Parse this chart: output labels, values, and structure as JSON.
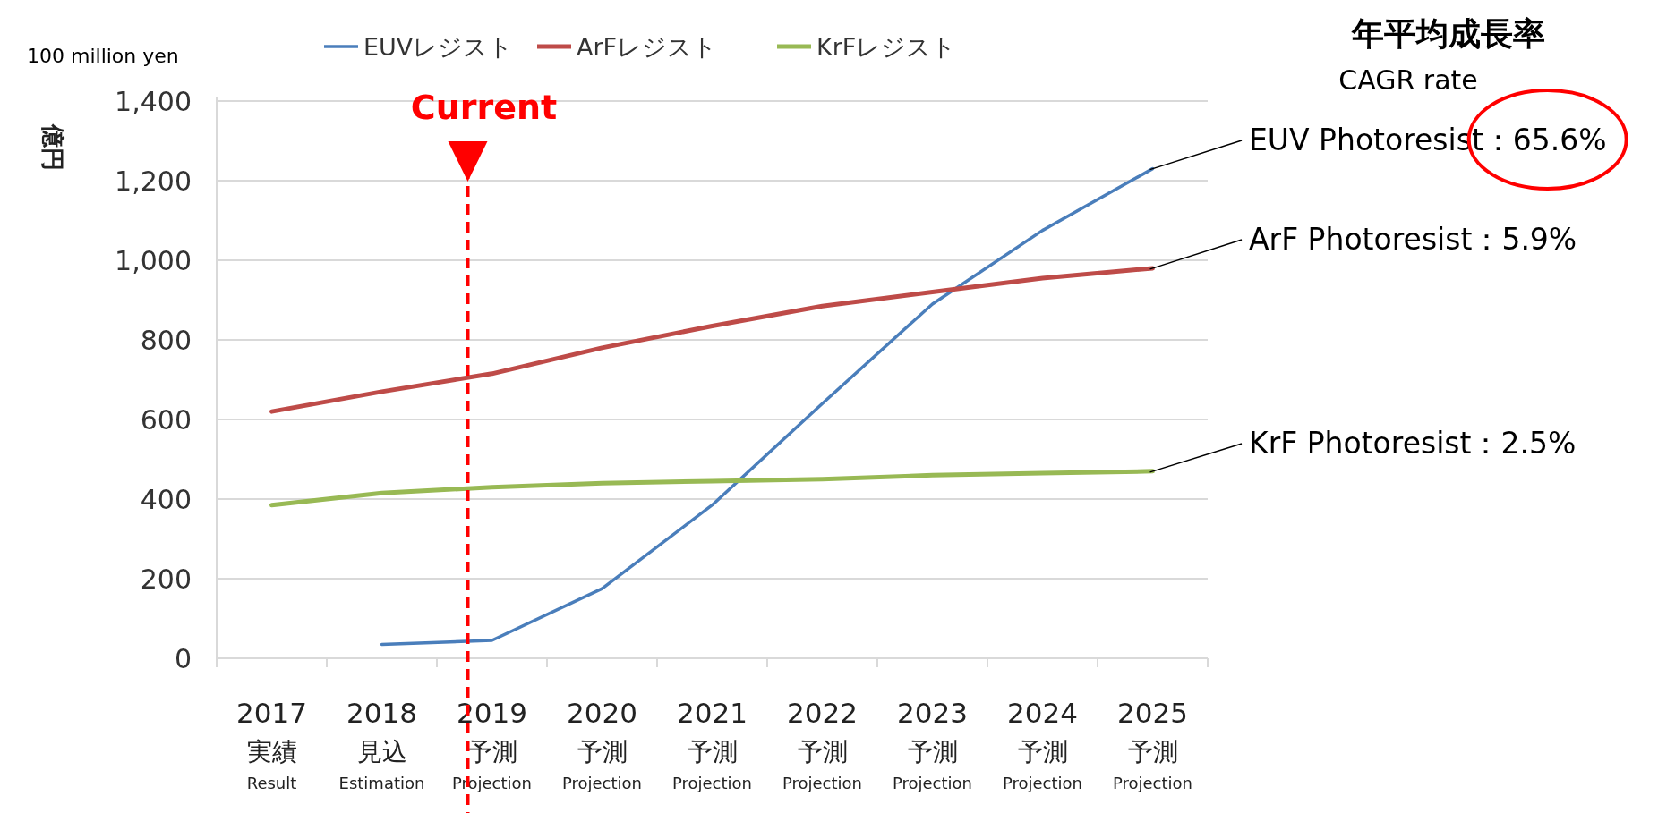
{
  "chart_data": {
    "type": "line",
    "ylabel": "億円",
    "legend": "top",
    "grid": "y",
    "categories": [
      "2017\n実績\nResult",
      "2018\n見込\nEstimation",
      "2019\n予測\nProjection",
      "2020\n予測\nProjection",
      "2021\n予測\nProjection",
      "2022\n予測\nProjection",
      "2023\n予測\nProjection",
      "2024\n予測\nProjection",
      "2025\n予測\nProjection"
    ],
    "ylim": [
      0,
      1400
    ],
    "yticks": [
      0,
      200,
      400,
      600,
      800,
      {
        "value": 1000,
        "label": "1,000"
      },
      {
        "value": 1200,
        "label": "1,200"
      },
      {
        "value": 1400,
        "label": "1,400"
      }
    ],
    "series": [
      {
        "name": "EUVレジスト",
        "color": "#4a7ebb",
        "values": [
          null,
          35,
          45,
          175,
          385,
          640,
          890,
          1075,
          1230
        ]
      },
      {
        "name": "ArFレジスト",
        "color": "#be4b48",
        "values": [
          620,
          670,
          715,
          780,
          835,
          885,
          920,
          955,
          980
        ]
      },
      {
        "name": "KrFレジスト",
        "color": "#98b954",
        "values": [
          385,
          415,
          430,
          440,
          445,
          450,
          460,
          465,
          470
        ]
      }
    ],
    "ref_lines": [
      {
        "axis": "x",
        "value": "2019\n予測\nProjection",
        "label": "Current",
        "color": "#ff0000",
        "line_style": "dashed"
      }
    ],
    "annotations": [
      "100 million yen",
      "年平均成長率",
      "CAGR rate",
      {
        "text": "EUV Photoresist：65.6%",
        "x": "2025\n予測\nProjection",
        "y": 1230
      },
      {
        "text": "ArF Photoresist：5.9%",
        "x": "2025\n予測\nProjection",
        "y": 980
      },
      {
        "text": "KrF Photoresist：2.5%",
        "x": "2025\n予測\nProjection",
        "y": 470
      }
    ]
  }
}
